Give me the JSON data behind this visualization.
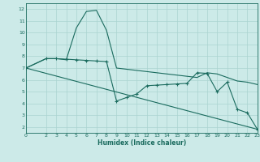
{
  "xlabel": "Humidex (Indice chaleur)",
  "bg_color": "#cceae8",
  "grid_color": "#aad4d0",
  "line_color": "#1a6b5e",
  "xlim": [
    0,
    23
  ],
  "ylim": [
    1.5,
    12.5
  ],
  "xticks": [
    0,
    2,
    3,
    4,
    5,
    6,
    7,
    8,
    9,
    10,
    11,
    12,
    13,
    14,
    15,
    16,
    17,
    18,
    19,
    20,
    21,
    22,
    23
  ],
  "yticks": [
    2,
    3,
    4,
    5,
    6,
    7,
    8,
    9,
    10,
    11,
    12
  ],
  "series": [
    {
      "x": [
        0,
        2,
        3,
        4,
        5,
        6,
        7,
        8,
        9,
        10,
        11,
        12,
        13,
        14,
        15,
        16,
        17,
        18,
        19,
        20,
        21,
        22,
        23
      ],
      "y": [
        7.0,
        7.8,
        7.8,
        7.7,
        10.4,
        11.8,
        11.9,
        10.2,
        7.0,
        6.9,
        6.8,
        6.7,
        6.6,
        6.5,
        6.4,
        6.3,
        6.2,
        6.6,
        6.5,
        6.2,
        5.9,
        5.8,
        5.6
      ],
      "marker": false
    },
    {
      "x": [
        0,
        2,
        3,
        4,
        5,
        6,
        7,
        8,
        9,
        10,
        11,
        12,
        13,
        14,
        15,
        16,
        17,
        18,
        19,
        20,
        21,
        22,
        23
      ],
      "y": [
        7.0,
        7.8,
        7.8,
        7.75,
        7.7,
        7.65,
        7.6,
        7.55,
        4.2,
        4.5,
        4.8,
        5.5,
        5.55,
        5.6,
        5.65,
        5.7,
        6.6,
        6.55,
        5.0,
        5.8,
        3.5,
        3.2,
        1.8
      ],
      "marker": true
    },
    {
      "x": [
        0,
        23
      ],
      "y": [
        7.0,
        1.8
      ],
      "marker": false
    }
  ]
}
